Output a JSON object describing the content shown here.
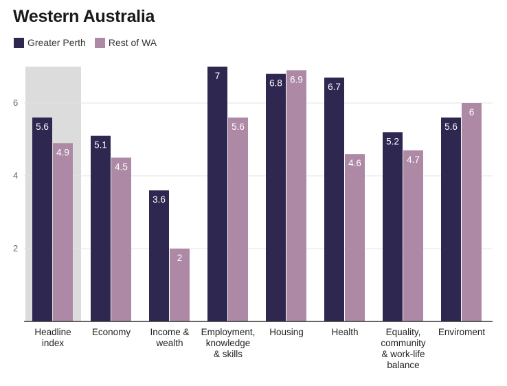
{
  "chart_data": {
    "type": "bar",
    "title": "Western Australia",
    "categories": [
      [
        "Headline",
        "index"
      ],
      [
        "Economy"
      ],
      [
        "Income &",
        "wealth"
      ],
      [
        "Employment,",
        "knowledge",
        "& skills"
      ],
      [
        "Housing"
      ],
      [
        "Health"
      ],
      [
        "Equality,",
        "community",
        "& work-life",
        "balance"
      ],
      [
        "Enviroment"
      ]
    ],
    "series": [
      {
        "name": "Greater Perth",
        "color": "#2e2750",
        "values": [
          5.6,
          5.1,
          3.6,
          7,
          6.8,
          6.7,
          5.2,
          5.6
        ],
        "labels": [
          "5.6",
          "5.1",
          "3.6",
          "7",
          "6.8",
          "6.7",
          "5.2",
          "5.6"
        ]
      },
      {
        "name": "Rest of WA",
        "color": "#ad89a5",
        "values": [
          4.9,
          4.5,
          2,
          5.6,
          6.9,
          4.6,
          4.7,
          6
        ],
        "labels": [
          "4.9",
          "4.5",
          "2",
          "5.6",
          "6.9",
          "4.6",
          "4.7",
          "6"
        ]
      }
    ],
    "yticks": [
      "2",
      "4",
      "6"
    ],
    "ylim": [
      0,
      7
    ],
    "highlight_category": 0,
    "highlight_color": "#dcdcdc",
    "grid": true,
    "legend_position": "top-left"
  }
}
